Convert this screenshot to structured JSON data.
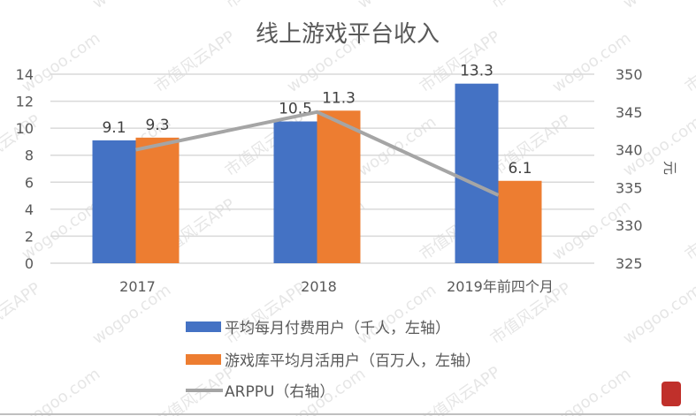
{
  "chart_data": {
    "type": "bar",
    "title": "线上游戏平台收入",
    "categories": [
      "2017",
      "2018",
      "2019年前四个月"
    ],
    "series": [
      {
        "name": "平均每月付费用户（千人，左轴）",
        "type": "bar",
        "axis": "left",
        "color": "#4472C4",
        "values": [
          9.1,
          10.5,
          13.3
        ]
      },
      {
        "name": "游戏库平均月活用户（百万人，左轴）",
        "type": "bar",
        "axis": "left",
        "color": "#ED7D31",
        "values": [
          9.3,
          11.3,
          6.1
        ]
      },
      {
        "name": "ARPPU（右轴）",
        "type": "line",
        "axis": "right",
        "color": "#A5A5A5",
        "values": [
          340,
          345,
          334
        ]
      }
    ],
    "left_axis": {
      "ylim": [
        0,
        14
      ],
      "ticks": [
        0,
        2,
        4,
        6,
        8,
        10,
        12,
        14
      ],
      "label": ""
    },
    "right_axis": {
      "ylim": [
        325,
        350
      ],
      "ticks": [
        325,
        330,
        335,
        340,
        345,
        350
      ],
      "label": "元"
    },
    "grid": true,
    "legend_position": "bottom"
  },
  "watermark": [
    "市值风云APP",
    "wogoo.com"
  ]
}
